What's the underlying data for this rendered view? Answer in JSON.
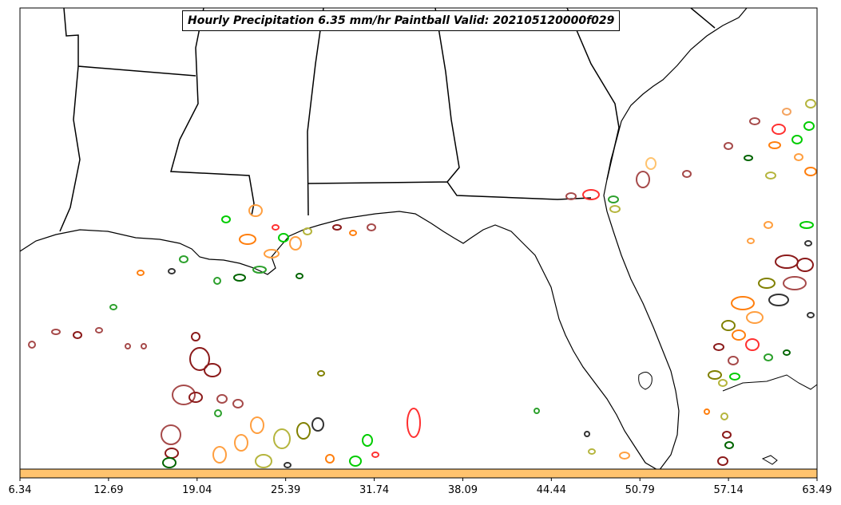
{
  "title": "Hourly Precipitation 6.35 mm/hr Paintball Valid: 202105120000f029",
  "colorbar": {
    "color": "#ffc36e",
    "ticks": [
      "6.34",
      "12.69",
      "19.04",
      "25.39",
      "31.74",
      "38.09",
      "44.44",
      "50.79",
      "57.14",
      "63.49"
    ]
  },
  "ensemble_member_colors": [
    "#8b1a1a",
    "#a64a4a",
    "#ff7f0e",
    "#ff9f40",
    "#2ca02c",
    "#00cc00",
    "#808000",
    "#b5b53d",
    "#ff3030",
    "#333333",
    "#006400",
    "#f4a460"
  ]
}
